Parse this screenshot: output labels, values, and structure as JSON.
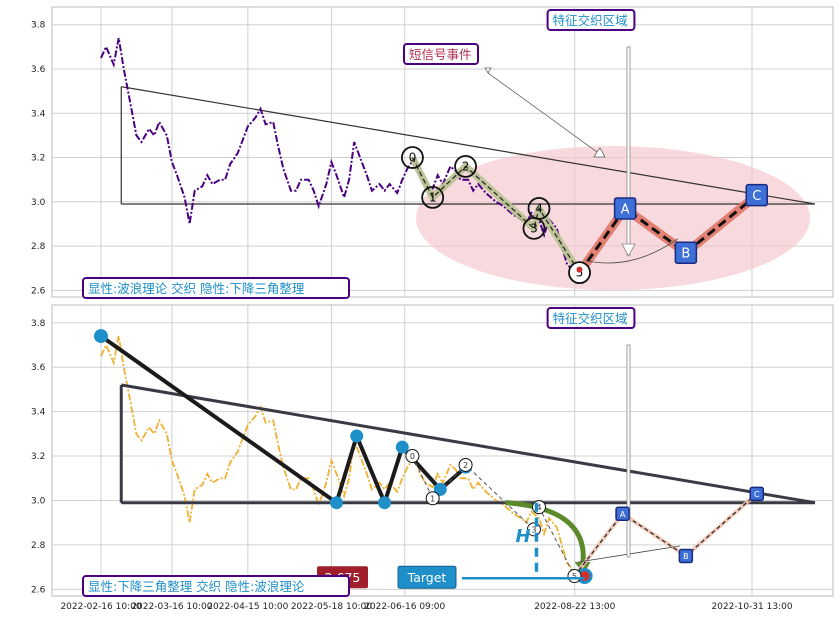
{
  "chart_data": [
    {
      "type": "line",
      "panel": "top",
      "ylim": [
        2.57,
        3.88
      ],
      "yticks": [
        "2.6",
        "2.8",
        "3.0",
        "3.2",
        "3.4",
        "3.6",
        "3.8"
      ],
      "series": [
        {
          "color": "#4b0082",
          "style": "dash-dot",
          "x": [
            "2022-02-16",
            "2022-02-18",
            "2022-02-21",
            "2022-02-23",
            "2022-02-25",
            "2022-02-28",
            "2022-03-02",
            "2022-03-04",
            "2022-03-07",
            "2022-03-09",
            "2022-03-11",
            "2022-03-14",
            "2022-03-16",
            "2022-03-18",
            "2022-03-21",
            "2022-03-23",
            "2022-03-25",
            "2022-03-28",
            "2022-03-30",
            "2022-04-01",
            "2022-04-04",
            "2022-04-06",
            "2022-04-08",
            "2022-04-11",
            "2022-04-13",
            "2022-04-15",
            "2022-04-18",
            "2022-04-20",
            "2022-04-22",
            "2022-04-25",
            "2022-04-27",
            "2022-04-29",
            "2022-05-02",
            "2022-05-04",
            "2022-05-06",
            "2022-05-09",
            "2022-05-11",
            "2022-05-13",
            "2022-05-16",
            "2022-05-18",
            "2022-05-20",
            "2022-05-23",
            "2022-05-25",
            "2022-05-27",
            "2022-05-30",
            "2022-06-01",
            "2022-06-03",
            "2022-06-06",
            "2022-06-08",
            "2022-06-10",
            "2022-06-13",
            "2022-06-15",
            "2022-06-17",
            "2022-06-20",
            "2022-06-22",
            "2022-06-24",
            "2022-06-27",
            "2022-06-29",
            "2022-07-01",
            "2022-07-04",
            "2022-07-06",
            "2022-07-08",
            "2022-07-11",
            "2022-07-13",
            "2022-07-15",
            "2022-07-18",
            "2022-07-20",
            "2022-07-22",
            "2022-07-25",
            "2022-07-27",
            "2022-07-29",
            "2022-08-01",
            "2022-08-03",
            "2022-08-05",
            "2022-08-08",
            "2022-08-10",
            "2022-08-12",
            "2022-08-15",
            "2022-08-17",
            "2022-08-19",
            "2022-08-22",
            "2022-08-24"
          ],
          "y": [
            3.65,
            3.7,
            3.62,
            3.74,
            3.6,
            3.42,
            3.3,
            3.27,
            3.33,
            3.3,
            3.36,
            3.3,
            3.18,
            3.12,
            3.02,
            2.9,
            3.05,
            3.07,
            3.12,
            3.08,
            3.1,
            3.1,
            3.17,
            3.22,
            3.28,
            3.34,
            3.38,
            3.42,
            3.35,
            3.36,
            3.25,
            3.15,
            3.05,
            3.05,
            3.1,
            3.1,
            3.05,
            2.98,
            3.08,
            3.18,
            3.12,
            3.02,
            3.1,
            3.27,
            3.18,
            3.12,
            3.05,
            3.08,
            3.05,
            3.08,
            3.04,
            3.1,
            3.15,
            3.2,
            3.12,
            3.08,
            3.06,
            3.12,
            3.08,
            3.16,
            3.14,
            3.1,
            3.1,
            3.05,
            3.08,
            3.04,
            3.02,
            3.0,
            2.98,
            2.96,
            2.94,
            2.92,
            2.9,
            2.95,
            2.92,
            2.85,
            2.92,
            2.88,
            2.8,
            2.72,
            2.68,
            2.66
          ]
        }
      ],
      "triangle_upper": {
        "x": [
          "2022-02-24",
          "2022-11-25"
        ],
        "y": [
          3.52,
          2.99
        ]
      },
      "triangle_base": {
        "x": [
          "2022-02-24",
          "2022-11-25"
        ],
        "y": [
          2.99,
          2.99
        ]
      },
      "wave_points": [
        {
          "label": "0",
          "x": "2022-06-19",
          "y": 3.2
        },
        {
          "label": "1",
          "x": "2022-06-27",
          "y": 3.02
        },
        {
          "label": "2",
          "x": "2022-07-10",
          "y": 3.16
        },
        {
          "label": "3",
          "x": "2022-08-06",
          "y": 2.88
        },
        {
          "label": "4",
          "x": "2022-08-08",
          "y": 2.97
        },
        {
          "label": "5",
          "x": "2022-08-24",
          "y": 2.68
        }
      ],
      "projection_points": [
        {
          "label": "A",
          "x": "2022-09-11",
          "y": 2.97
        },
        {
          "label": "B",
          "x": "2022-10-05",
          "y": 2.77
        },
        {
          "label": "C",
          "x": "2022-11-02",
          "y": 3.03
        }
      ],
      "annotations": {
        "zone_title": "特征交织区域",
        "short_signal": "短信号事件",
        "bottom_label": "显性:波浪理论 交织 隐性:下降三角整理"
      }
    },
    {
      "type": "line",
      "panel": "bottom",
      "ylim": [
        2.57,
        3.88
      ],
      "yticks": [
        "2.6",
        "2.8",
        "3.0",
        "3.2",
        "3.4",
        "3.6",
        "3.8"
      ],
      "series": [
        {
          "color": "#f0b030",
          "style": "dash-dot",
          "x": [
            "2022-02-16",
            "2022-02-18",
            "2022-02-21",
            "2022-02-23",
            "2022-02-25",
            "2022-02-28",
            "2022-03-02",
            "2022-03-04",
            "2022-03-07",
            "2022-03-09",
            "2022-03-11",
            "2022-03-14",
            "2022-03-16",
            "2022-03-18",
            "2022-03-21",
            "2022-03-23",
            "2022-03-25",
            "2022-03-28",
            "2022-03-30",
            "2022-04-01",
            "2022-04-04",
            "2022-04-06",
            "2022-04-08",
            "2022-04-11",
            "2022-04-13",
            "2022-04-15",
            "2022-04-18",
            "2022-04-20",
            "2022-04-22",
            "2022-04-25",
            "2022-04-27",
            "2022-04-29",
            "2022-05-02",
            "2022-05-04",
            "2022-05-06",
            "2022-05-09",
            "2022-05-11",
            "2022-05-13",
            "2022-05-16",
            "2022-05-18",
            "2022-05-20",
            "2022-05-23",
            "2022-05-25",
            "2022-05-27",
            "2022-05-30",
            "2022-06-01",
            "2022-06-03",
            "2022-06-06",
            "2022-06-08",
            "2022-06-10",
            "2022-06-13",
            "2022-06-15",
            "2022-06-17",
            "2022-06-20",
            "2022-06-22",
            "2022-06-24",
            "2022-06-27",
            "2022-06-29",
            "2022-07-01",
            "2022-07-04",
            "2022-07-06",
            "2022-07-08",
            "2022-07-11",
            "2022-07-13",
            "2022-07-15",
            "2022-07-18",
            "2022-07-20",
            "2022-07-22",
            "2022-07-25",
            "2022-07-27",
            "2022-07-29",
            "2022-08-01",
            "2022-08-03",
            "2022-08-05",
            "2022-08-08",
            "2022-08-10",
            "2022-08-12",
            "2022-08-15",
            "2022-08-17",
            "2022-08-19",
            "2022-08-22",
            "2022-08-24"
          ],
          "y": [
            3.65,
            3.7,
            3.62,
            3.74,
            3.6,
            3.42,
            3.3,
            3.27,
            3.33,
            3.3,
            3.36,
            3.3,
            3.18,
            3.12,
            3.02,
            2.9,
            3.05,
            3.07,
            3.12,
            3.08,
            3.1,
            3.1,
            3.17,
            3.22,
            3.28,
            3.34,
            3.38,
            3.42,
            3.35,
            3.36,
            3.25,
            3.15,
            3.05,
            3.05,
            3.1,
            3.1,
            3.05,
            2.98,
            3.08,
            3.18,
            3.12,
            3.02,
            3.1,
            3.27,
            3.18,
            3.12,
            3.05,
            3.08,
            3.05,
            3.08,
            3.04,
            3.1,
            3.15,
            3.2,
            3.12,
            3.08,
            3.06,
            3.12,
            3.08,
            3.16,
            3.14,
            3.1,
            3.1,
            3.05,
            3.08,
            3.04,
            3.02,
            3.0,
            2.98,
            2.96,
            2.94,
            2.92,
            2.9,
            2.95,
            2.92,
            2.85,
            2.92,
            2.88,
            2.8,
            2.72,
            2.68,
            2.66
          ]
        }
      ],
      "pattern_points": [
        {
          "x": "2022-02-16",
          "y": 3.74
        },
        {
          "x": "2022-05-20",
          "y": 2.99
        },
        {
          "x": "2022-05-28",
          "y": 3.29
        },
        {
          "x": "2022-06-08",
          "y": 2.99
        },
        {
          "x": "2022-06-15",
          "y": 3.24
        },
        {
          "x": "2022-06-30",
          "y": 3.05
        },
        {
          "x": "2022-07-10",
          "y": 3.15
        },
        {
          "x": "2022-08-26",
          "y": 2.66
        }
      ],
      "wave_points": [
        {
          "label": "0",
          "x": "2022-06-19",
          "y": 3.2
        },
        {
          "label": "1",
          "x": "2022-06-27",
          "y": 3.01
        },
        {
          "label": "2",
          "x": "2022-07-10",
          "y": 3.16
        },
        {
          "label": "3",
          "x": "2022-08-06",
          "y": 2.87
        },
        {
          "label": "4",
          "x": "2022-08-08",
          "y": 2.97
        },
        {
          "label": "5",
          "x": "2022-08-22",
          "y": 2.66
        }
      ],
      "projection_points": [
        {
          "label": "A",
          "x": "2022-09-10",
          "y": 2.94
        },
        {
          "label": "B",
          "x": "2022-10-05",
          "y": 2.75
        },
        {
          "label": "C",
          "x": "2022-11-02",
          "y": 3.03
        }
      ],
      "triangle_upper": {
        "x": [
          "2022-02-24",
          "2022-11-25"
        ],
        "y": [
          3.52,
          2.99
        ]
      },
      "triangle_base": {
        "x": [
          "2022-02-24",
          "2022-11-25"
        ],
        "y": [
          2.99,
          2.99
        ]
      },
      "height_marker": {
        "x": "2022-08-07",
        "y_top": 2.99,
        "y_bottom": 2.65,
        "label": "H"
      },
      "target_value": 2.65,
      "annotations": {
        "zone_title": "特征交织区域",
        "bottom_label": "显性:下降三角整理 交织 隐性:波浪理论",
        "price_badge": "2.675",
        "target_label": "Target"
      }
    }
  ],
  "x_axis": {
    "ticks": [
      "2022-02-16 10:00",
      "2022-03-16 10:00",
      "2022-04-15 10:00",
      "2022-05-18 10:00",
      "2022-06-16 09:00",
      "2022-08-22 13:00",
      "2022-10-31 13:00"
    ]
  },
  "colors": {
    "top_series": "#4b0082",
    "bottom_series": "#f0b030",
    "wave_fill_top": "#b8c090",
    "abc_fill": "#e07060",
    "abc_box": "#3d6fd6",
    "zone_ellipse": "#f4c6cc",
    "label_border": "#4b0082",
    "label_text": "#1e8fc9",
    "signal_text": "#b03050",
    "badge_red": "#a01f2a",
    "badge_blue": "#1e8fc9",
    "pattern_dot": "#1e8fc9"
  }
}
